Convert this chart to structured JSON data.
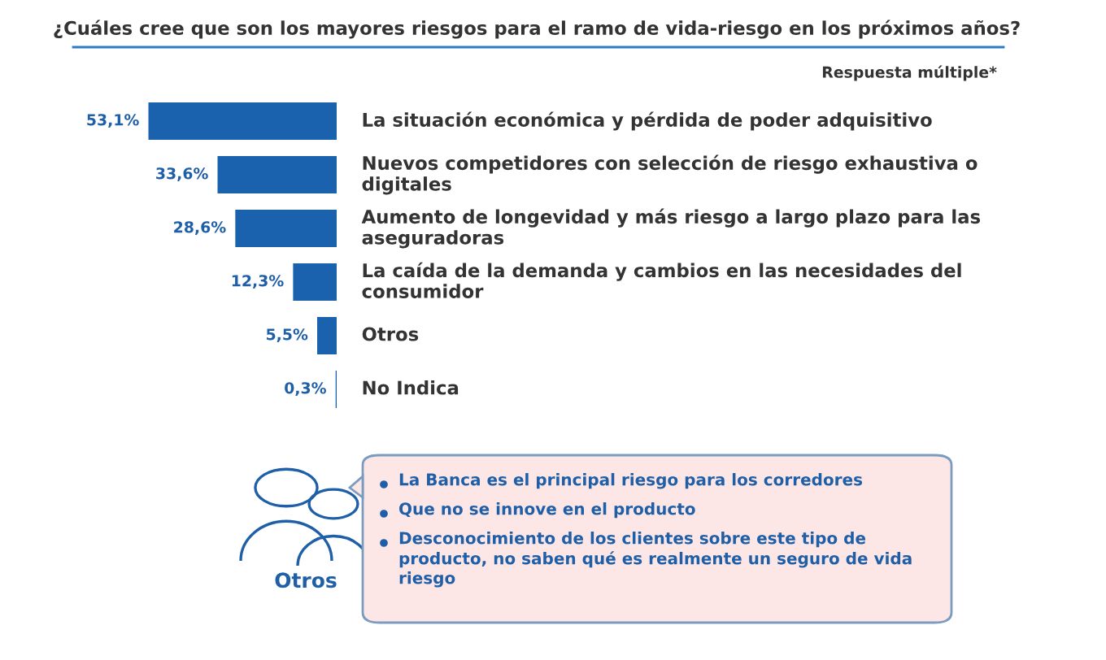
{
  "chart_data": {
    "type": "bar",
    "orientation": "horizontal",
    "title": "¿Cuáles cree que son los mayores riesgos para el ramo de vida-riesgo en los próximos años?",
    "subtitle": "Respuesta múltiple*",
    "categories": [
      "La situación económica y pérdida de poder adquisitivo",
      "Nuevos competidores con selección de riesgo exhaustiva o digitales",
      "Aumento de longevidad y más riesgo a largo plazo para las aseguradoras",
      "La caída de la demanda y cambios en las necesidades del consumidor",
      "Otros",
      "No Indica"
    ],
    "values": [
      53.1,
      33.6,
      28.6,
      12.3,
      5.5,
      0.3
    ],
    "value_labels": [
      "53,1%",
      "33,6%",
      "28,6%",
      "12,3%",
      "5,5%",
      "0,3%"
    ],
    "color": "#1a62ae",
    "annotations": [
      "Otros",
      "La Banca es el principal riesgo para los corredores",
      "Que no se innove en el producto",
      "Desconocimiento de los clientes sobre este tipo de producto, no saben qué es realmente un seguro de vida riesgo"
    ]
  }
}
